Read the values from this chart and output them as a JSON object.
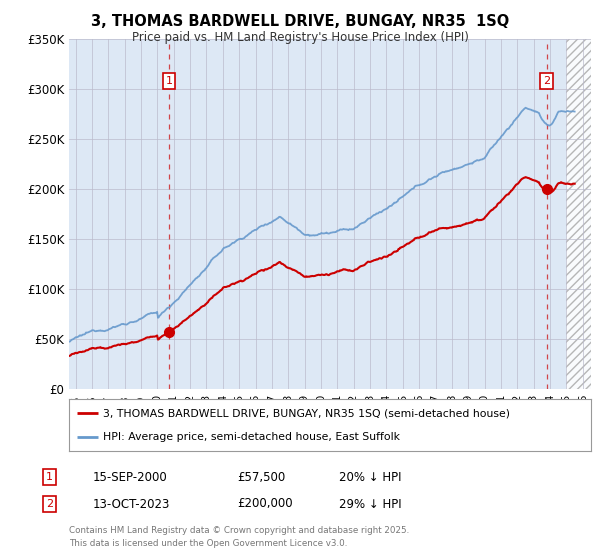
{
  "title": "3, THOMAS BARDWELL DRIVE, BUNGAY, NR35  1SQ",
  "subtitle": "Price paid vs. HM Land Registry's House Price Index (HPI)",
  "ylim": [
    0,
    350000
  ],
  "xlim_start": 1994.6,
  "xlim_end": 2026.5,
  "hatch_start": 2025.0,
  "yticks": [
    0,
    50000,
    100000,
    150000,
    200000,
    250000,
    300000,
    350000
  ],
  "ytick_labels": [
    "£0",
    "£50K",
    "£100K",
    "£150K",
    "£200K",
    "£250K",
    "£300K",
    "£350K"
  ],
  "sale1_x": 2000.71,
  "sale1_y": 57500,
  "sale1_label": "1",
  "sale1_date": "15-SEP-2000",
  "sale1_price": "£57,500",
  "sale1_hpi": "20% ↓ HPI",
  "sale2_x": 2023.79,
  "sale2_y": 200000,
  "sale2_label": "2",
  "sale2_date": "13-OCT-2023",
  "sale2_price": "£200,000",
  "sale2_hpi": "29% ↓ HPI",
  "legend_label_red": "3, THOMAS BARDWELL DRIVE, BUNGAY, NR35 1SQ (semi-detached house)",
  "legend_label_blue": "HPI: Average price, semi-detached house, East Suffolk",
  "footer": "Contains HM Land Registry data © Crown copyright and database right 2025.\nThis data is licensed under the Open Government Licence v3.0.",
  "red_color": "#cc0000",
  "blue_color": "#6699cc",
  "bg_fill": "#dde8f5",
  "bg_color": "#ffffff",
  "grid_color": "#bbbbcc"
}
